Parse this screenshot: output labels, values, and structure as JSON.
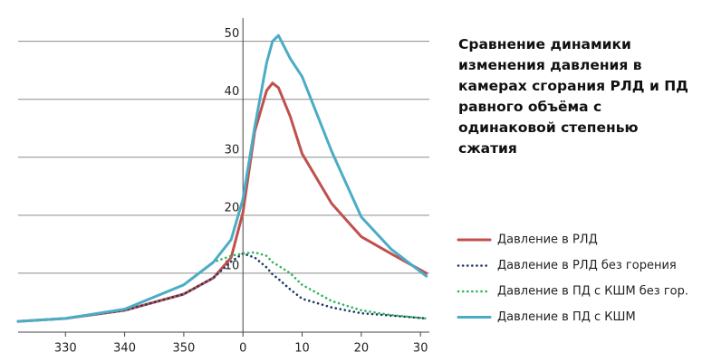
{
  "chart_data": {
    "type": "line",
    "title": "Сравнение динамики изменения давления в камерах сгорания РЛД и ПД равного объёма с одинаковой степенью сжатия",
    "x": [
      -38,
      -30,
      -20,
      -10,
      -5,
      -2,
      0,
      2,
      4,
      5,
      6,
      8,
      10,
      15,
      20,
      25,
      31
    ],
    "series": [
      {
        "name": "Давление в РЛД",
        "color": "#c0504d",
        "style": "solid",
        "values": [
          1.7,
          2.2,
          3.6,
          6.4,
          9.2,
          12.7,
          20.5,
          34.5,
          41.5,
          42.8,
          42,
          37,
          30.6,
          22,
          16.3,
          13.4,
          10
        ]
      },
      {
        "name": "Давление в РЛД без горения",
        "color": "#1f3864",
        "style": "dotted",
        "values": [
          1.7,
          2.2,
          3.6,
          6.4,
          9.2,
          12,
          13.4,
          12.7,
          11,
          9.8,
          9,
          7.2,
          5.6,
          4.1,
          3.1,
          2.7,
          2.2
        ]
      },
      {
        "name": "Давление в ПД с КШМ без гор.",
        "color": "#2eb85c",
        "style": "dotted",
        "values": [
          1.7,
          2.2,
          3.8,
          8,
          11.9,
          13,
          13.4,
          13.6,
          13,
          11.9,
          11.3,
          10,
          8,
          5.2,
          3.6,
          2.8,
          2.2
        ]
      },
      {
        "name": "Давление в ПД с КШМ",
        "color": "#4bacc6",
        "style": "solid",
        "values": [
          1.7,
          2.2,
          3.8,
          8,
          11.9,
          15.8,
          22.8,
          35.3,
          46.3,
          50,
          51,
          47,
          43.9,
          31,
          19.7,
          14.2,
          9.5
        ]
      }
    ],
    "xlim": [
      -38,
      31.5
    ],
    "xticks": [
      {
        "value": -30,
        "label": "330"
      },
      {
        "value": -20,
        "label": "340"
      },
      {
        "value": -10,
        "label": "350"
      },
      0,
      10,
      20,
      30
    ],
    "ylim": [
      0,
      54
    ],
    "yticks": [
      10,
      20,
      30,
      40,
      50
    ],
    "grid": true
  }
}
